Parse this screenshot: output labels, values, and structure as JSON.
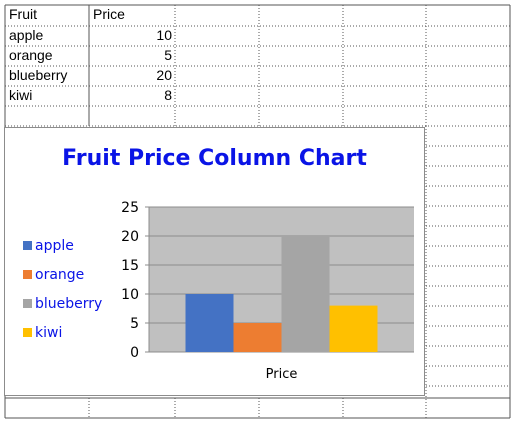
{
  "sheet": {
    "header": {
      "fruit": "Fruit",
      "price": "Price"
    },
    "rows": [
      {
        "fruit": "apple",
        "price": "10"
      },
      {
        "fruit": "orange",
        "price": "5"
      },
      {
        "fruit": "blueberry",
        "price": "20"
      },
      {
        "fruit": "kiwi",
        "price": "8"
      }
    ]
  },
  "chart_data": {
    "type": "bar",
    "title": "Fruit Price Column Chart",
    "categories": [
      "Price"
    ],
    "series": [
      {
        "name": "apple",
        "values": [
          10
        ],
        "color": "#4472c4"
      },
      {
        "name": "orange",
        "values": [
          5
        ],
        "color": "#ed7d31"
      },
      {
        "name": "blueberry",
        "values": [
          20
        ],
        "color": "#a5a5a5"
      },
      {
        "name": "kiwi",
        "values": [
          8
        ],
        "color": "#ffc000"
      }
    ],
    "ylim": [
      0,
      25
    ],
    "yticks": [
      "0",
      "5",
      "10",
      "15",
      "20",
      "25"
    ],
    "grid": true,
    "legend": "left",
    "plot_background": "#c0c0c0",
    "title_color": "#0a14e6"
  }
}
